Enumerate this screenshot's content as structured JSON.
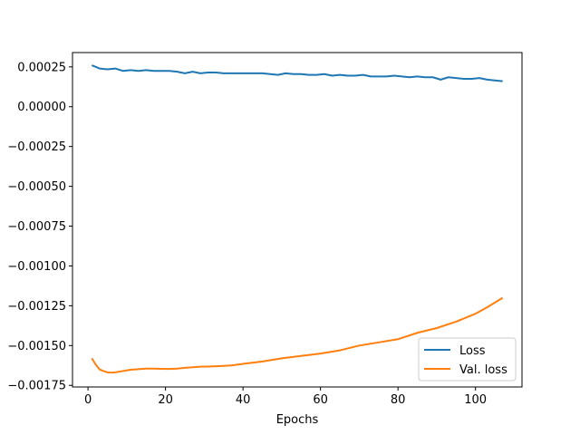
{
  "chart_data": {
    "type": "line",
    "title": "",
    "xlabel": "Epochs",
    "ylabel": "",
    "xlim": [
      -4,
      112
    ],
    "ylim": [
      -0.00176,
      0.00034
    ],
    "xticks": [
      0,
      20,
      40,
      60,
      80,
      100
    ],
    "yticks": [
      0.00025,
      0.0,
      -0.00025,
      -0.0005,
      -0.00075,
      -0.001,
      -0.00125,
      -0.0015,
      -0.00175
    ],
    "ytick_labels": [
      "0.00025",
      "0.00000",
      "−0.00025",
      "−0.00050",
      "−0.00075",
      "−0.00100",
      "−0.00125",
      "−0.00150",
      "−0.00175"
    ],
    "xtick_labels": [
      "0",
      "20",
      "40",
      "60",
      "80",
      "100"
    ],
    "grid": false,
    "legend_position": "lower-right",
    "series": [
      {
        "name": "Loss",
        "color": "#1f77b4",
        "x": [
          1,
          3,
          5,
          7,
          9,
          11,
          13,
          15,
          17,
          19,
          21,
          23,
          25,
          27,
          29,
          31,
          33,
          35,
          37,
          39,
          41,
          43,
          45,
          47,
          49,
          51,
          53,
          55,
          57,
          59,
          61,
          63,
          65,
          67,
          69,
          71,
          73,
          75,
          77,
          79,
          81,
          83,
          85,
          87,
          89,
          91,
          93,
          95,
          97,
          99,
          101,
          103,
          105,
          107
        ],
        "y": [
          0.00026,
          0.00024,
          0.000235,
          0.00024,
          0.000225,
          0.00023,
          0.000225,
          0.00023,
          0.000225,
          0.000225,
          0.000225,
          0.00022,
          0.00021,
          0.00022,
          0.00021,
          0.000215,
          0.000215,
          0.00021,
          0.00021,
          0.00021,
          0.00021,
          0.00021,
          0.00021,
          0.000205,
          0.0002,
          0.00021,
          0.000205,
          0.000205,
          0.0002,
          0.0002,
          0.000205,
          0.000195,
          0.0002,
          0.000195,
          0.000195,
          0.0002,
          0.00019,
          0.00019,
          0.00019,
          0.000195,
          0.00019,
          0.000185,
          0.00019,
          0.000185,
          0.000185,
          0.00017,
          0.000185,
          0.00018,
          0.000175,
          0.000175,
          0.00018,
          0.00017,
          0.000165,
          0.00016
        ]
      },
      {
        "name": "Val. loss",
        "color": "#ff7f0e",
        "x": [
          1,
          2,
          3,
          4,
          5,
          6,
          7,
          9,
          11,
          13,
          15,
          17,
          19,
          21,
          23,
          25,
          27,
          29,
          31,
          33,
          35,
          37,
          40,
          45,
          50,
          55,
          60,
          65,
          70,
          75,
          80,
          85,
          90,
          95,
          100,
          103,
          105,
          107
        ],
        "y": [
          -0.00158,
          -0.00162,
          -0.00165,
          -0.00166,
          -0.001668,
          -0.00167,
          -0.001668,
          -0.00166,
          -0.001652,
          -0.001648,
          -0.001645,
          -0.001645,
          -0.001646,
          -0.001647,
          -0.001645,
          -0.00164,
          -0.001636,
          -0.001633,
          -0.001632,
          -0.00163,
          -0.001628,
          -0.001625,
          -0.001615,
          -0.0016,
          -0.00158,
          -0.001565,
          -0.00155,
          -0.00153,
          -0.0015,
          -0.00148,
          -0.00146,
          -0.00142,
          -0.00139,
          -0.00135,
          -0.0013,
          -0.00126,
          -0.00123,
          -0.0012
        ]
      }
    ]
  }
}
